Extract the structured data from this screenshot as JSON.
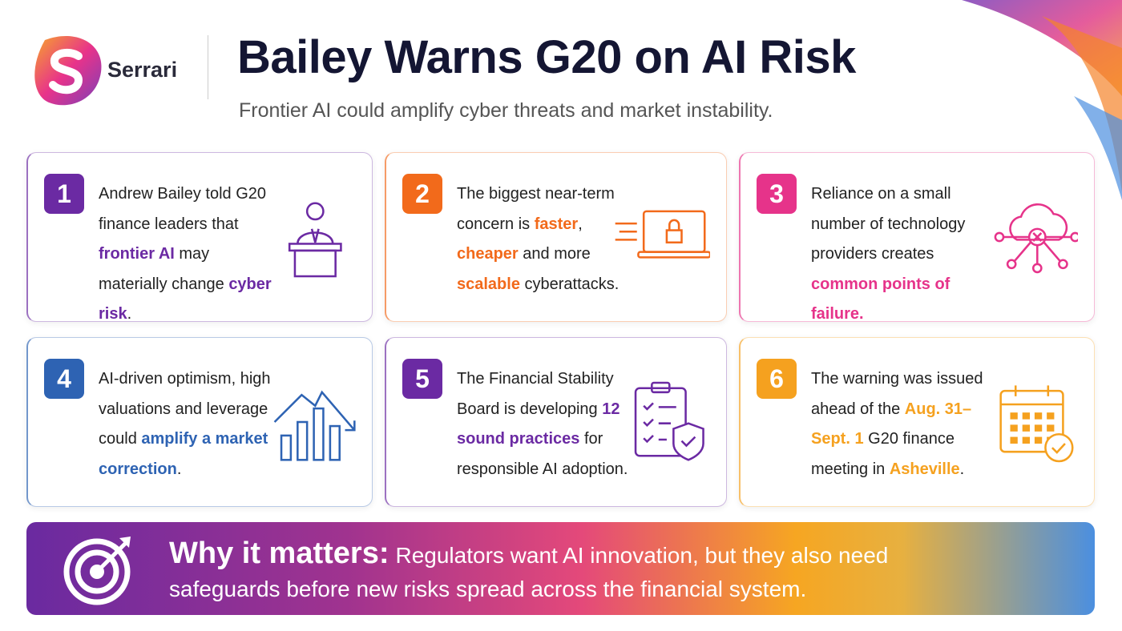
{
  "brand": {
    "name": "Serrari"
  },
  "header": {
    "title": "Bailey Warns G20 on AI Risk",
    "subtitle": "Frontier AI could amplify cyber threats and market instability."
  },
  "cards": [
    {
      "number": "1",
      "color": "#6b2aa3",
      "segments": [
        {
          "text": "Andrew Bailey told G20 finance leaders that "
        },
        {
          "text": "frontier AI",
          "highlight": true
        },
        {
          "text": " may materially change "
        },
        {
          "text": "cyber risk",
          "highlight": true
        },
        {
          "text": "."
        }
      ]
    },
    {
      "number": "2",
      "color": "#f26a1b",
      "segments": [
        {
          "text": "The biggest near-term concern is "
        },
        {
          "text": "faster",
          "highlight": true
        },
        {
          "text": ", "
        },
        {
          "text": "cheaper",
          "highlight": true
        },
        {
          "text": " and more "
        },
        {
          "text": "scalable",
          "highlight": true
        },
        {
          "text": " cyberattacks."
        }
      ]
    },
    {
      "number": "3",
      "color": "#e6338a",
      "segments": [
        {
          "text": "Reliance on a small number of technology providers creates "
        },
        {
          "text": "common points of failure.",
          "highlight": true
        }
      ]
    },
    {
      "number": "4",
      "color": "#2e63b3",
      "segments": [
        {
          "text": "AI-driven optimism, high valuations and leverage could "
        },
        {
          "text": "amplify a market correction",
          "highlight": true
        },
        {
          "text": "."
        }
      ]
    },
    {
      "number": "5",
      "color": "#6b2aa3",
      "segments": [
        {
          "text": "The Financial Stability Board is developing "
        },
        {
          "text": "12 sound practices",
          "highlight": true
        },
        {
          "text": " for responsible AI adoption."
        }
      ]
    },
    {
      "number": "6",
      "color": "#f5a11f",
      "segments": [
        {
          "text": "The warning was issued ahead of the "
        },
        {
          "text": "Aug. 31–Sept. 1",
          "highlight": true
        },
        {
          "text": " G20 finance meeting in "
        },
        {
          "text": "Asheville",
          "highlight": true
        },
        {
          "text": "."
        }
      ]
    }
  ],
  "why": {
    "label": "Why it matters:",
    "text": "Regulators want AI innovation, but they also need safeguards before new risks spread across the financial system."
  }
}
